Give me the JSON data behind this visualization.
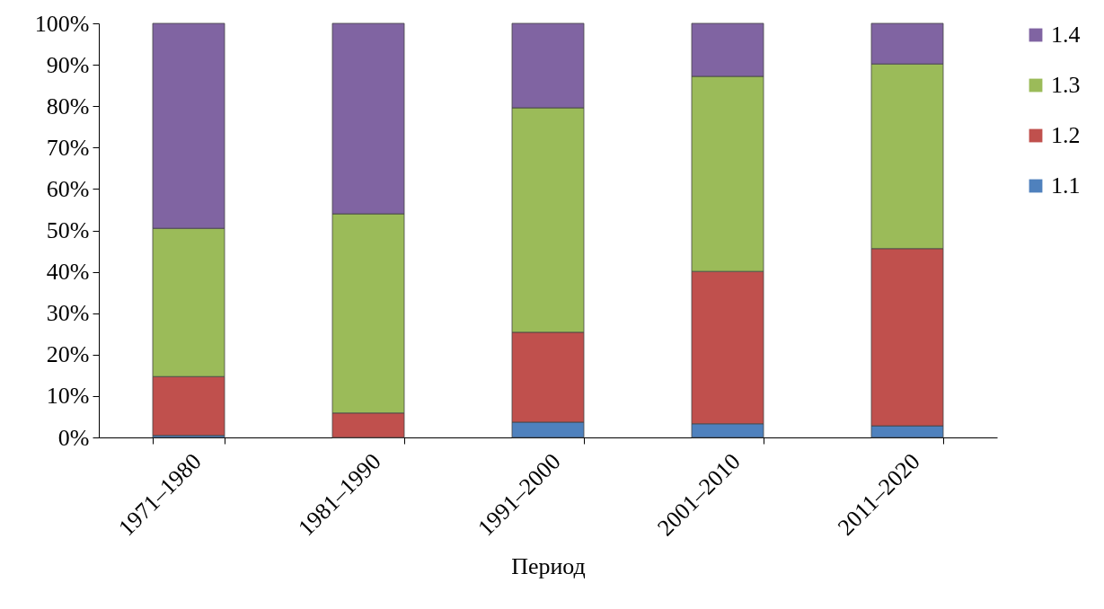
{
  "chart_data": {
    "type": "bar",
    "stacked": true,
    "xlabel": "Период",
    "categories": [
      "1971–1980",
      "1981–1990",
      "1991–2000",
      "2001–2010",
      "2011–2020"
    ],
    "series": [
      {
        "name": "1.1",
        "color": "#4f81bd",
        "values": [
          0.5,
          0,
          3.7,
          3.3,
          2.8
        ]
      },
      {
        "name": "1.2",
        "color": "#c0504d",
        "values": [
          14.2,
          5.9,
          21.7,
          36.8,
          42.8
        ]
      },
      {
        "name": "1.3",
        "color": "#9bbb59",
        "values": [
          35.8,
          48.1,
          54.2,
          47.1,
          44.6
        ]
      },
      {
        "name": "1.4",
        "color": "#8064a2",
        "values": [
          49.5,
          46.0,
          20.4,
          12.8,
          9.8
        ]
      }
    ],
    "ylim": [
      0,
      100
    ],
    "yticks": [
      {
        "value": 0,
        "label": "0%"
      },
      {
        "value": 10,
        "label": "10%"
      },
      {
        "value": 20,
        "label": "20%"
      },
      {
        "value": 30,
        "label": "30%"
      },
      {
        "value": 40,
        "label": "40%"
      },
      {
        "value": 50,
        "label": "50%"
      },
      {
        "value": 60,
        "label": "60%"
      },
      {
        "value": 70,
        "label": "70%"
      },
      {
        "value": 80,
        "label": "80%"
      },
      {
        "value": 90,
        "label": "90%"
      },
      {
        "value": 100,
        "label": "100%"
      }
    ],
    "grid": false,
    "legend": "right"
  }
}
